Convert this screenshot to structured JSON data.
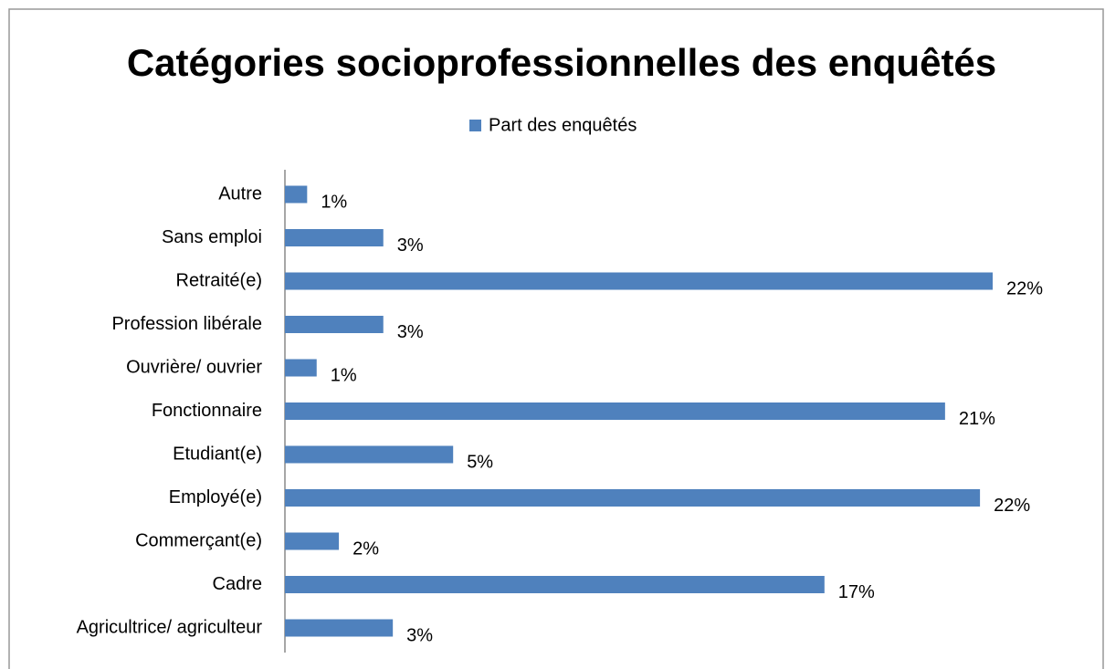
{
  "chart_data": {
    "type": "bar",
    "orientation": "horizontal",
    "title": "Catégories socioprofessionnelles des enquêtés",
    "categories": [
      "Autre",
      "Sans emploi",
      "Retraité(e)",
      "Profession libérale",
      "Ouvrière/ ouvrier",
      "Fonctionnaire",
      "Etudiant(e)",
      "Employé(e)",
      "Commerçant(e)",
      "Cadre",
      "Agricultrice/ agriculteur"
    ],
    "series": [
      {
        "name": "Part des enquêtés",
        "color": "#4f81bd",
        "values": [
          0.7,
          3.1,
          22.3,
          3.1,
          1.0,
          20.8,
          5.3,
          21.9,
          1.7,
          17.0,
          3.4
        ],
        "value_labels": [
          "1%",
          "3%",
          "22%",
          "3%",
          "1%",
          "21%",
          "5%",
          "22%",
          "2%",
          "17%",
          "3%"
        ]
      }
    ],
    "legend": "top"
  }
}
